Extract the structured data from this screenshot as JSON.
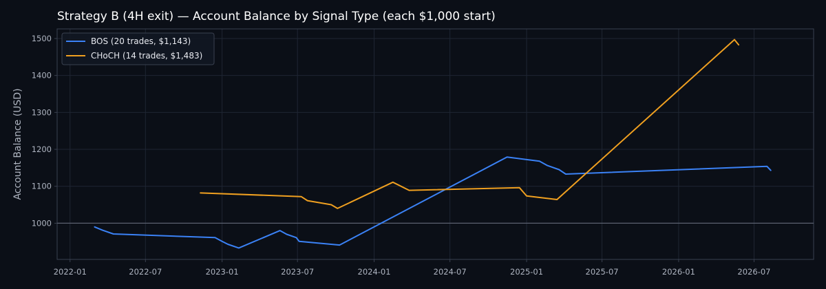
{
  "chart_data": {
    "type": "line",
    "title": "Strategy B (4H exit) — Account Balance by Signal Type (each $1,000 start)",
    "ylabel": "Account Balance (USD)",
    "xlabel": "",
    "ylim": [
      902,
      1526
    ],
    "xlim": [
      "2021-12-01",
      "2026-11-21"
    ],
    "yticks": [
      1000,
      1100,
      1200,
      1300,
      1400,
      1500
    ],
    "xticks": [
      "2022-01",
      "2022-07",
      "2023-01",
      "2023-07",
      "2024-01",
      "2024-07",
      "2025-01",
      "2025-07",
      "2026-01",
      "2026-07"
    ],
    "reference_line": 1000,
    "grid": true,
    "legend": "top-left",
    "colors": {
      "background": "#0b0f17",
      "plot_background": "#0b0f17",
      "grid": "#1f2633",
      "axis": "#3a4150",
      "reference": "#5b6170",
      "text": "#aeb4c0"
    },
    "series": [
      {
        "name": "BOS (20 trades, $1,143)",
        "color": "#3b82f6",
        "x": [
          "2022-03-01",
          "2022-03-20",
          "2022-04-15",
          "2022-12-15",
          "2023-01-01",
          "2023-01-15",
          "2023-02-10",
          "2023-05-20",
          "2023-06-05",
          "2023-06-28",
          "2023-07-05",
          "2023-10-10",
          "2024-11-15",
          "2025-02-01",
          "2025-02-20",
          "2025-03-20",
          "2025-04-05",
          "2026-08-01",
          "2026-08-10"
        ],
        "y": [
          990,
          981,
          971,
          961,
          951,
          943,
          933,
          980,
          970,
          961,
          951,
          941,
          1179,
          1168,
          1156,
          1145,
          1133,
          1154,
          1143
        ]
      },
      {
        "name": "CHoCH (14 trades, $1,483)",
        "color": "#f0a020",
        "x": [
          "2022-11-10",
          "2023-07-10",
          "2023-07-25",
          "2023-09-20",
          "2023-10-05",
          "2024-02-15",
          "2024-03-25",
          "2024-12-15",
          "2025-01-01",
          "2025-03-15",
          "2026-05-15",
          "2026-05-25"
        ],
        "y": [
          1082,
          1072,
          1061,
          1050,
          1040,
          1111,
          1089,
          1096,
          1074,
          1064,
          1497,
          1483
        ]
      }
    ]
  }
}
